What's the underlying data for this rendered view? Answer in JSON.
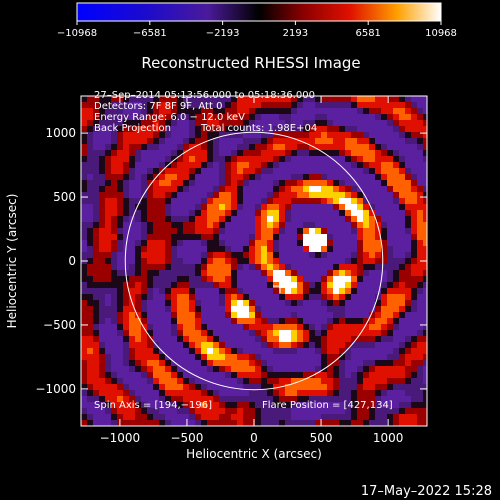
{
  "chart_data": {
    "type": "heatmap",
    "title": "Reconstructed RHESSI Image",
    "xlabel": "Heliocentric X (arcsec)",
    "ylabel": "Heliocentric Y (arcsec)",
    "xlim": [
      -1290,
      1290
    ],
    "ylim": [
      -1290,
      1290
    ],
    "x_ticks": [
      -1000,
      -500,
      0,
      500,
      1000
    ],
    "y_ticks": [
      -1000,
      -500,
      0,
      500,
      1000
    ],
    "x_tick_labels": [
      "−1000",
      "−500",
      "0",
      "500",
      "1000"
    ],
    "y_tick_labels": [
      "−1000",
      "−500",
      "0",
      "500",
      "1000"
    ],
    "colorbar": {
      "min": -10968,
      "max": 10968,
      "ticks": [
        -10968,
        -6581,
        -2193,
        2193,
        6581,
        10968
      ],
      "tick_labels": [
        "−10968",
        "−6581",
        "−2193",
        "2193",
        "6581",
        "10968"
      ]
    },
    "annotations": {
      "time_range": "27–Sep–2014 05:13:56.000 to 05:18:36.000",
      "detectors": "Detectors: 7F 8F 9F, Att 0",
      "energy_range": "Energy Range: 6.0 − 12.0 keV",
      "method": "Back Projection",
      "total_counts": "Total counts: 1.98E+04",
      "spin_axis": "Spin Axis = [194,−196]",
      "flare_position": "Flare Position = [427,134]"
    },
    "solar_limb_radius_arcsec": 960,
    "spin_axis": [
      194,
      -196
    ],
    "flare_position": [
      427,
      134
    ],
    "sources": [
      {
        "x": 460,
        "y": 160,
        "intensity": 10968
      },
      {
        "x": -100,
        "y": -380,
        "intensity": 6200
      },
      {
        "x": 230,
        "y": -170,
        "intensity": 4200
      }
    ]
  },
  "footer": {
    "timestamp": "17–May–2022 15:28"
  },
  "colors": {
    "background": "#000000",
    "text": "#ffffff"
  }
}
